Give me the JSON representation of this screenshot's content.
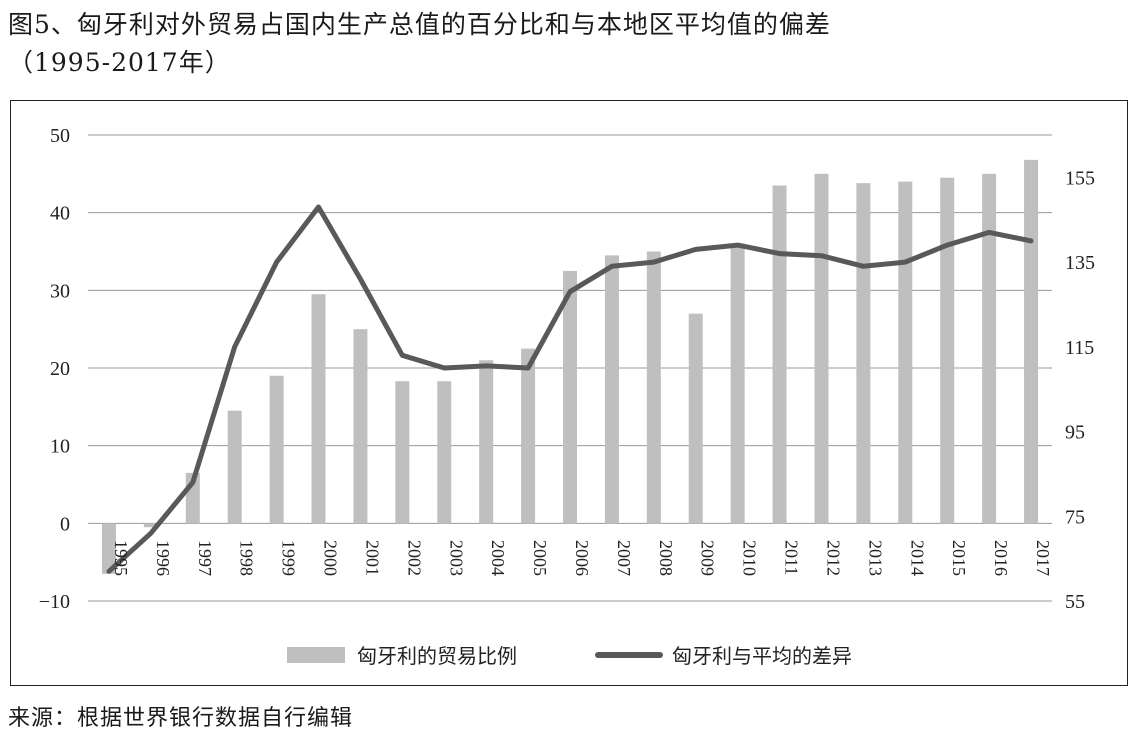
{
  "title": {
    "line1": "图5、匈牙利对外贸易占国内生产总值的百分比和与本地区平均值的偏差",
    "line2": "（1995-2017年）"
  },
  "source": "来源：根据世界银行数据自行编辑",
  "chart_data": {
    "type": "bar+line",
    "categories": [
      "1995",
      "1996",
      "1997",
      "1998",
      "1999",
      "2000",
      "2001",
      "2002",
      "2003",
      "2004",
      "2005",
      "2006",
      "2007",
      "2008",
      "2009",
      "2010",
      "2011",
      "2012",
      "2013",
      "2014",
      "2015",
      "2016",
      "2017"
    ],
    "series": [
      {
        "name": "匈牙利的贸易比例",
        "type": "bar",
        "axis": "left",
        "color": "#bfbfbf",
        "values": [
          -6.5,
          -0.5,
          6.5,
          14.5,
          19,
          29.5,
          25,
          18.3,
          18.3,
          21,
          22.5,
          32.5,
          34.5,
          35,
          27,
          36,
          43.5,
          45,
          43.8,
          44,
          44.5,
          45,
          46.8
        ]
      },
      {
        "name": "匈牙利与平均的差异",
        "type": "line",
        "axis": "right",
        "color": "#595959",
        "values": [
          62,
          71,
          83,
          115,
          135,
          148,
          131,
          113,
          110,
          110.5,
          110,
          128,
          134,
          135,
          138,
          139,
          137,
          136.5,
          134,
          135,
          139,
          142,
          140
        ]
      }
    ],
    "left_axis": {
      "min": -10,
      "max": 50,
      "ticks": [
        -10,
        0,
        10,
        20,
        30,
        40,
        50
      ]
    },
    "right_axis": {
      "min": 55,
      "max": 165,
      "ticks": [
        55,
        75,
        95,
        115,
        135,
        155
      ]
    },
    "grid": true,
    "legend_position": "bottom"
  }
}
